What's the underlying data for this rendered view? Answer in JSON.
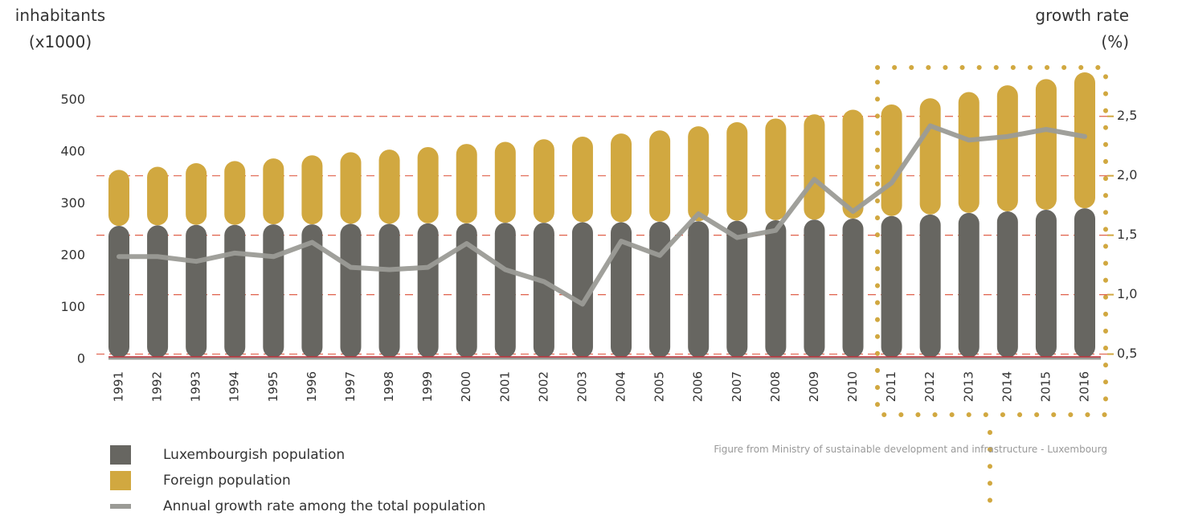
{
  "chart_data": {
    "type": "bar",
    "y_label": "inhabitants\n(x1000)",
    "y2_label": "growth rate\n(%)",
    "source": "Figure from Ministry of sustainable development and infrastructure - Luxembourg",
    "categories": [
      "1991",
      "1992",
      "1993",
      "1994",
      "1995",
      "1996",
      "1997",
      "1998",
      "1999",
      "2000",
      "2001",
      "2002",
      "2003",
      "2004",
      "2005",
      "2006",
      "2007",
      "2008",
      "2009",
      "2010",
      "2011",
      "2012",
      "2013",
      "2014",
      "2015",
      "2016"
    ],
    "series": [
      {
        "name": "Luxembourgish population",
        "color": "#676661",
        "values": [
          254,
          255,
          256,
          256,
          257,
          257,
          258,
          258,
          259,
          259,
          260,
          260,
          261,
          261,
          262,
          263,
          264,
          265,
          266,
          268,
          273,
          276,
          279,
          282,
          285,
          288
        ]
      },
      {
        "name": "Foreign population",
        "color": "#d1a840",
        "values": [
          108,
          113,
          119,
          123,
          127,
          133,
          138,
          143,
          147,
          153,
          156,
          161,
          165,
          171,
          176,
          183,
          190,
          196,
          203,
          210,
          215,
          224,
          233,
          243,
          252,
          262
        ]
      },
      {
        "name": "Annual growth rate among the total population",
        "color": "#9b9b96",
        "axis": "y2",
        "kind": "line",
        "values": [
          1.32,
          1.32,
          1.28,
          1.35,
          1.32,
          1.44,
          1.23,
          1.21,
          1.23,
          1.43,
          1.21,
          1.11,
          0.92,
          1.45,
          1.33,
          1.68,
          1.48,
          1.54,
          1.97,
          1.7,
          1.94,
          2.42,
          2.3,
          2.33,
          2.39,
          2.33
        ]
      }
    ],
    "ylim": [
      0,
      550
    ],
    "yticks": [
      0,
      100,
      200,
      300,
      400,
      500
    ],
    "y2lim": [
      0.47,
      2.87
    ],
    "y2ticks": [
      {
        "value": 0.5,
        "label": "0,5"
      },
      {
        "value": 1.0,
        "label": "1,0"
      },
      {
        "value": 1.5,
        "label": "1,5"
      },
      {
        "value": 2.0,
        "label": "2,0"
      },
      {
        "value": 2.5,
        "label": "2,5"
      }
    ],
    "grid": true,
    "grid_axis": "y2",
    "grid_color": "#e0604a"
  }
}
